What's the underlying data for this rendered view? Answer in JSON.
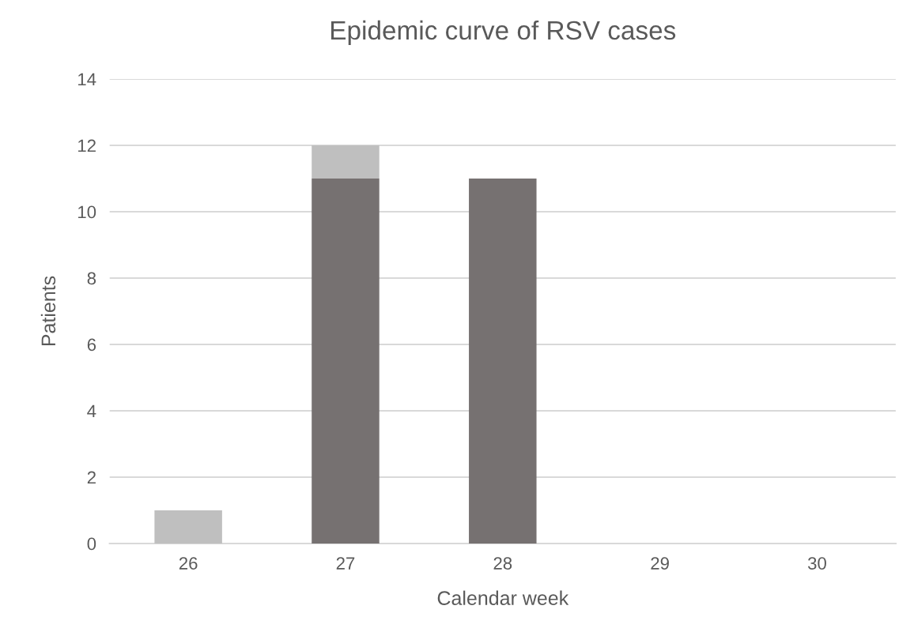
{
  "chart_data": {
    "type": "bar",
    "title": "Epidemic curve of RSV cases",
    "xlabel": "Calendar week",
    "ylabel": "Patients",
    "categories": [
      "26",
      "27",
      "28",
      "29",
      "30"
    ],
    "stacked": true,
    "series": [
      {
        "color": "#767171",
        "values": [
          0,
          11,
          11,
          0,
          0
        ]
      },
      {
        "color": "#bfbfbf",
        "values": [
          1,
          1,
          0,
          0,
          0
        ]
      }
    ],
    "ylim": [
      0,
      14
    ],
    "yticks": [
      0,
      2,
      4,
      6,
      8,
      10,
      12,
      14
    ],
    "grid": "y"
  }
}
